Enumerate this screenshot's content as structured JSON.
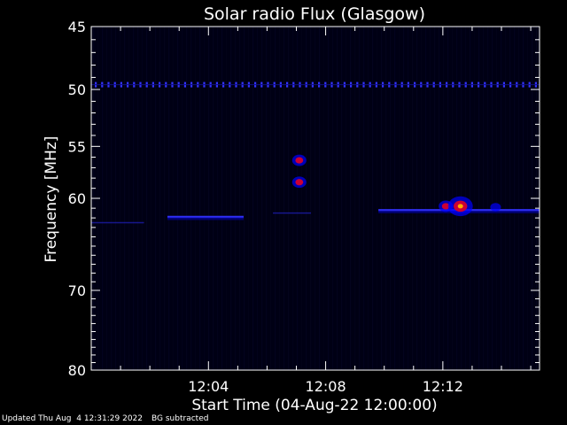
{
  "chart_data": {
    "type": "heatmap",
    "title": "Solar radio Flux (Glasgow)",
    "xlabel": "Start Time (04-Aug-22 12:00:00)",
    "ylabel": "Frequency [MHz]",
    "x_range_minutes": [
      0,
      15.3
    ],
    "x_ticks": [
      {
        "minute": 4,
        "label": "12:04"
      },
      {
        "minute": 8,
        "label": "12:08"
      },
      {
        "minute": 12,
        "label": "12:12"
      }
    ],
    "y_range_mhz": [
      45,
      80
    ],
    "y_scale": "log",
    "y_ticks": [
      {
        "value": 45,
        "label": "45"
      },
      {
        "value": 50,
        "label": "50"
      },
      {
        "value": 55,
        "label": "55"
      },
      {
        "value": 60,
        "label": "60"
      },
      {
        "value": 70,
        "label": "70"
      },
      {
        "value": 80,
        "label": "80"
      }
    ],
    "background_color": "#000014",
    "colormap": [
      "#000033",
      "#0000ff",
      "#ff0000",
      "#ffff00"
    ],
    "features": [
      {
        "kind": "band",
        "minute_start": 0,
        "minute_end": 15.3,
        "freq_mhz": 49.6,
        "intensity": "medium",
        "dashed": true
      },
      {
        "kind": "band",
        "minute_start": 0,
        "minute_end": 1.8,
        "freq_mhz": 62.5,
        "intensity": "low"
      },
      {
        "kind": "band",
        "minute_start": 2.6,
        "minute_end": 5.2,
        "freq_mhz": 61.9,
        "intensity": "medium"
      },
      {
        "kind": "band",
        "minute_start": 6.2,
        "minute_end": 7.5,
        "freq_mhz": 61.5,
        "intensity": "low"
      },
      {
        "kind": "band",
        "minute_start": 9.8,
        "minute_end": 15.3,
        "freq_mhz": 61.2,
        "intensity": "medium"
      },
      {
        "kind": "burst",
        "minute": 7.1,
        "freq_mhz": 56.3,
        "intensity": "high"
      },
      {
        "kind": "burst",
        "minute": 7.1,
        "freq_mhz": 58.4,
        "intensity": "high"
      },
      {
        "kind": "burst",
        "minute": 12.1,
        "freq_mhz": 60.8,
        "intensity": "high"
      },
      {
        "kind": "burst",
        "minute": 12.6,
        "freq_mhz": 60.8,
        "intensity": "peak"
      },
      {
        "kind": "burst",
        "minute": 13.8,
        "freq_mhz": 60.9,
        "intensity": "medium"
      }
    ]
  },
  "footer": {
    "updated": "Updated Thu Aug  4 12:31:29 2022",
    "note": "BG subtracted"
  }
}
